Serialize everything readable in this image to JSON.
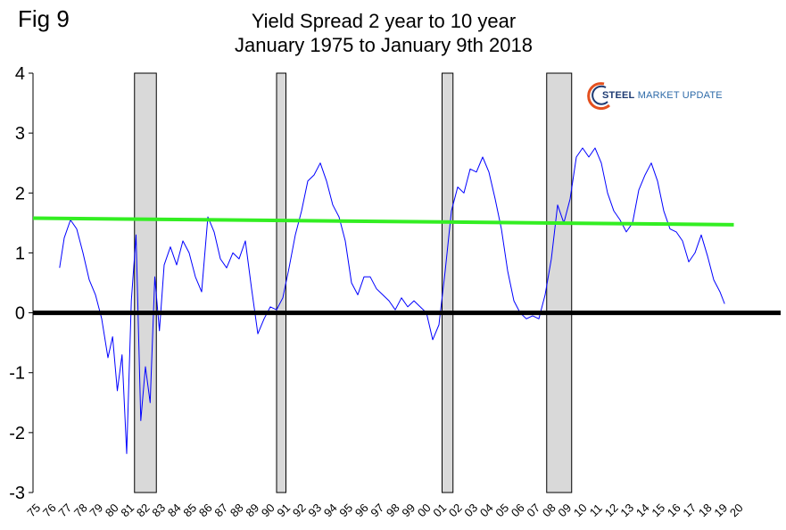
{
  "fig_label": "Fig 9",
  "logo": {
    "text_bold": "STEEL",
    "text_rest": " MARKET UPDATE"
  },
  "colors": {
    "series": "#0000ff",
    "trend": "#33ee22",
    "zero": "#000000",
    "recession_fill": "#d9d9d9",
    "logo_navy": "#1e3b73",
    "logo_orange": "#e4501f"
  },
  "chart_data": {
    "type": "line",
    "title": "Yield Spread 2 year to 10 year",
    "subtitle": "January 1975 to January 9th 2018",
    "xlabel": "",
    "ylabel": "",
    "xlim": [
      1975,
      2020
    ],
    "ylim": [
      -3,
      4
    ],
    "yticks": [
      -3,
      -2,
      -1,
      0,
      1,
      2,
      3,
      4
    ],
    "xticks": [
      "75",
      "76",
      "77",
      "78",
      "79",
      "80",
      "81",
      "82",
      "83",
      "84",
      "85",
      "86",
      "87",
      "88",
      "89",
      "90",
      "91",
      "92",
      "93",
      "94",
      "95",
      "96",
      "97",
      "98",
      "99",
      "00",
      "01",
      "02",
      "03",
      "04",
      "05",
      "06",
      "07",
      "08",
      "09",
      "10",
      "11",
      "12",
      "13",
      "14",
      "15",
      "16",
      "17",
      "18",
      "19",
      "20"
    ],
    "grid": false,
    "legend": "none",
    "recessions": [
      [
        1981.5,
        1982.9
      ],
      [
        1990.6,
        1991.2
      ],
      [
        2001.2,
        2001.9
      ],
      [
        2007.9,
        2009.5
      ]
    ],
    "zero_line": 0,
    "trend_line": {
      "x": [
        1975,
        2020
      ],
      "y": [
        1.58,
        1.47
      ]
    },
    "series": [
      {
        "x": [
          1976.7,
          1977.0,
          1977.4,
          1977.8,
          1978.2,
          1978.6,
          1979.0,
          1979.4,
          1979.8,
          1980.1,
          1980.4,
          1980.7,
          1981.0,
          1981.3,
          1981.6,
          1981.9,
          1982.2,
          1982.5,
          1982.8,
          1983.1,
          1983.4,
          1983.8,
          1984.2,
          1984.6,
          1985.0,
          1985.4,
          1985.8,
          1986.2,
          1986.6,
          1987.0,
          1987.4,
          1987.8,
          1988.2,
          1988.6,
          1989.0,
          1989.4,
          1989.8,
          1990.2,
          1990.6,
          1991.0,
          1991.4,
          1991.8,
          1992.2,
          1992.6,
          1993.0,
          1993.4,
          1993.8,
          1994.2,
          1994.6,
          1995.0,
          1995.4,
          1995.8,
          1996.2,
          1996.6,
          1997.0,
          1997.4,
          1997.8,
          1998.2,
          1998.6,
          1999.0,
          1999.4,
          1999.8,
          2000.2,
          2000.6,
          2001.0,
          2001.4,
          2001.8,
          2002.2,
          2002.6,
          2003.0,
          2003.4,
          2003.8,
          2004.2,
          2004.6,
          2005.0,
          2005.4,
          2005.8,
          2006.2,
          2006.6,
          2007.0,
          2007.4,
          2007.8,
          2008.2,
          2008.6,
          2009.0,
          2009.4,
          2009.8,
          2010.2,
          2010.6,
          2011.0,
          2011.4,
          2011.8,
          2012.2,
          2012.6,
          2013.0,
          2013.4,
          2013.8,
          2014.2,
          2014.6,
          2015.0,
          2015.4,
          2015.8,
          2016.2,
          2016.6,
          2017.0,
          2017.4,
          2017.8,
          2018.2,
          2018.6,
          2019.0,
          2019.3
        ],
        "y": [
          0.75,
          1.25,
          1.55,
          1.4,
          1.0,
          0.55,
          0.3,
          -0.1,
          -0.75,
          -0.4,
          -1.3,
          -0.7,
          -2.35,
          0.2,
          1.3,
          -1.8,
          -0.9,
          -1.5,
          0.6,
          -0.3,
          0.8,
          1.1,
          0.8,
          1.2,
          1.0,
          0.6,
          0.35,
          1.6,
          1.35,
          0.9,
          0.75,
          1.0,
          0.9,
          1.2,
          0.4,
          -0.35,
          -0.1,
          0.1,
          0.05,
          0.25,
          0.75,
          1.3,
          1.7,
          2.2,
          2.3,
          2.5,
          2.2,
          1.8,
          1.6,
          1.2,
          0.5,
          0.3,
          0.6,
          0.6,
          0.4,
          0.3,
          0.2,
          0.05,
          0.25,
          0.1,
          0.2,
          0.1,
          0.0,
          -0.45,
          -0.2,
          0.7,
          1.7,
          2.1,
          2.0,
          2.4,
          2.35,
          2.6,
          2.35,
          1.9,
          1.4,
          0.7,
          0.2,
          0.0,
          -0.1,
          -0.05,
          -0.1,
          0.3,
          0.9,
          1.8,
          1.5,
          1.9,
          2.6,
          2.75,
          2.6,
          2.75,
          2.5,
          2.0,
          1.7,
          1.55,
          1.35,
          1.5,
          2.05,
          2.3,
          2.5,
          2.2,
          1.7,
          1.4,
          1.35,
          1.2,
          0.85,
          1.0,
          1.3,
          0.95,
          0.55,
          0.35,
          0.15
        ]
      }
    ]
  }
}
